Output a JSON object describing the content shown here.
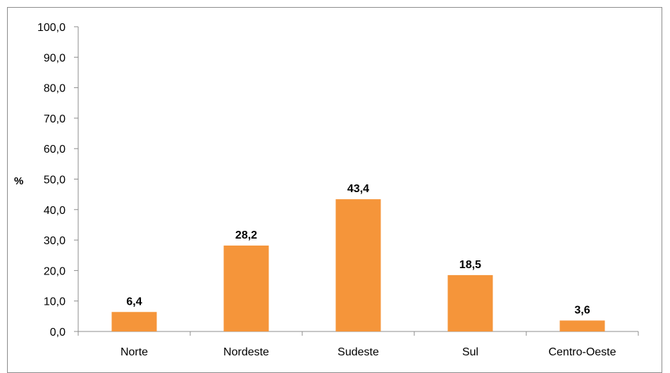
{
  "chart_data": {
    "type": "bar",
    "categories": [
      "Norte",
      "Nordeste",
      "Sudeste",
      "Sul",
      "Centro-Oeste"
    ],
    "values": [
      6.4,
      28.2,
      43.4,
      18.5,
      3.6
    ],
    "data_labels": [
      "6,4",
      "28,2",
      "43,4",
      "18,5",
      "3,6"
    ],
    "title": "",
    "xlabel": "",
    "ylabel": "%",
    "ylim": [
      0,
      100
    ],
    "yticks": [
      0,
      10,
      20,
      30,
      40,
      50,
      60,
      70,
      80,
      90,
      100
    ],
    "ytick_labels": [
      "0,0",
      "10,0",
      "20,0",
      "30,0",
      "40,0",
      "50,0",
      "60,0",
      "70,0",
      "80,0",
      "90,0",
      "100,0"
    ],
    "grid": false,
    "legend": "none",
    "bar_color": "#f5953a"
  }
}
